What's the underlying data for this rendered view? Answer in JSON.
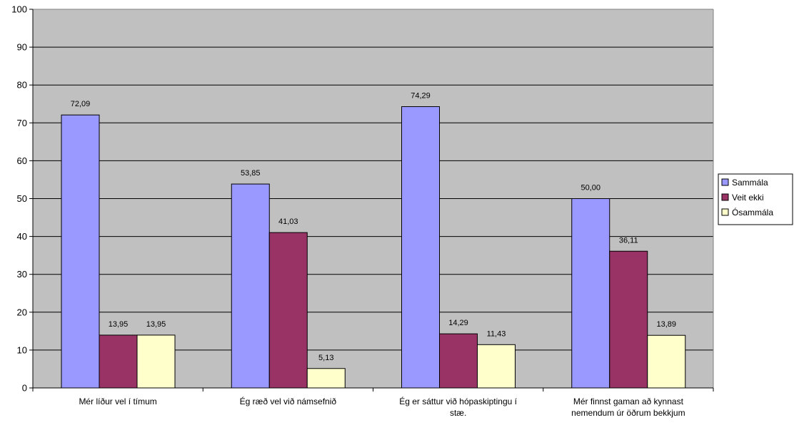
{
  "chart_data": {
    "type": "bar",
    "title": "",
    "xlabel": "",
    "ylabel": "",
    "ylim": [
      0,
      100
    ],
    "yticks": [
      0,
      10,
      20,
      30,
      40,
      50,
      60,
      70,
      80,
      90,
      100
    ],
    "categories": [
      [
        "Mér líður vel í tímum"
      ],
      [
        "Ég ræð vel við námsefnið"
      ],
      [
        "Ég er sáttur við hópaskiptingu í",
        "stæ."
      ],
      [
        "Mér finnst gaman að kynnast",
        "nemendum úr öðrum bekkjum"
      ]
    ],
    "series": [
      {
        "name": "Sammála",
        "color": "#9999ff",
        "values": [
          72.09,
          53.85,
          74.29,
          50.0
        ],
        "labels": [
          "72,09",
          "53,85",
          "74,29",
          "50,00"
        ]
      },
      {
        "name": "Veit ekki",
        "color": "#993366",
        "values": [
          13.95,
          41.03,
          14.29,
          36.11
        ],
        "labels": [
          "13,95",
          "41,03",
          "14,29",
          "36,11"
        ]
      },
      {
        "name": "Ósammála",
        "color": "#ffffcc",
        "values": [
          13.95,
          5.13,
          11.43,
          13.89
        ],
        "labels": [
          "13,95",
          "5,13",
          "11,43",
          "13,89"
        ]
      }
    ],
    "grid": true,
    "legend_position": "right",
    "plot_background": "#c0c0c0"
  }
}
